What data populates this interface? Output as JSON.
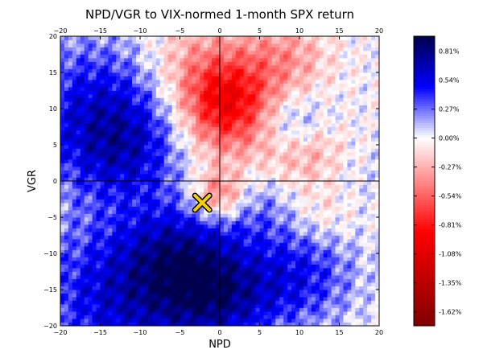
{
  "chart_data": {
    "type": "heatmap",
    "title": "NPD/VGR to VIX-normed 1-month SPX return",
    "xlabel": "NPD",
    "ylabel": "VGR",
    "xlim": [
      -20,
      20
    ],
    "ylim": [
      -20,
      20
    ],
    "x_ticks": [
      "−20",
      "−15",
      "−10",
      "−5",
      "0",
      "5",
      "10",
      "15",
      "20"
    ],
    "y_ticks": [
      "20",
      "15",
      "10",
      "5",
      "0",
      "−5",
      "−10",
      "−15",
      "−20"
    ],
    "crosshair": {
      "x": 0,
      "y": 0
    },
    "marker": {
      "x": -2.2,
      "y": -3.0,
      "shape": "x",
      "color": "#f5d000"
    },
    "colorbar": {
      "ticks": [
        "0.81%",
        "0.54%",
        "0.27%",
        "0.00%",
        "-0.27%",
        "-0.54%",
        "-0.81%",
        "-1.08%",
        "-1.35%",
        "-1.62%"
      ],
      "tick_values": [
        0.81,
        0.54,
        0.27,
        0.0,
        -0.27,
        -0.54,
        -0.81,
        -1.08,
        -1.35,
        -1.62
      ],
      "range": [
        -1.75,
        0.95
      ],
      "colormap": "seismic_r"
    },
    "field": {
      "units": "percent",
      "base": [
        {
          "x": -15,
          "y": 10,
          "value": 0.55,
          "spread": 7
        },
        {
          "x": -12,
          "y": -16,
          "value": 0.6,
          "spread": 8
        },
        {
          "x": 0,
          "y": -16,
          "value": 0.55,
          "spread": 5
        },
        {
          "x": 10,
          "y": -13,
          "value": 0.45,
          "spread": 5
        },
        {
          "x": -5,
          "y": -10,
          "value": 0.45,
          "spread": 5
        },
        {
          "x": -12,
          "y": 4,
          "value": 0.35,
          "spread": 5
        },
        {
          "x": 9,
          "y": 8,
          "value": 0.3,
          "spread": 3
        },
        {
          "x": 4,
          "y": -2,
          "value": 0.35,
          "spread": 4
        },
        {
          "x": 15,
          "y": 0,
          "value": 0.1,
          "spread": 4
        },
        {
          "x": 1,
          "y": 11,
          "value": -0.8,
          "spread": 4
        },
        {
          "x": -3,
          "y": 16,
          "value": -0.35,
          "spread": 5
        },
        {
          "x": 8,
          "y": 17,
          "value": -0.35,
          "spread": 4
        },
        {
          "x": 0,
          "y": -2,
          "value": -0.65,
          "spread": 2.5
        },
        {
          "x": 7,
          "y": 2,
          "value": -0.25,
          "spread": 4
        },
        {
          "x": 12,
          "y": 4,
          "value": -0.25,
          "spread": 3
        },
        {
          "x": 13,
          "y": -4,
          "value": -0.2,
          "spread": 3
        },
        {
          "x": 0,
          "y": 5,
          "value": -0.2,
          "spread": 4
        }
      ]
    }
  }
}
